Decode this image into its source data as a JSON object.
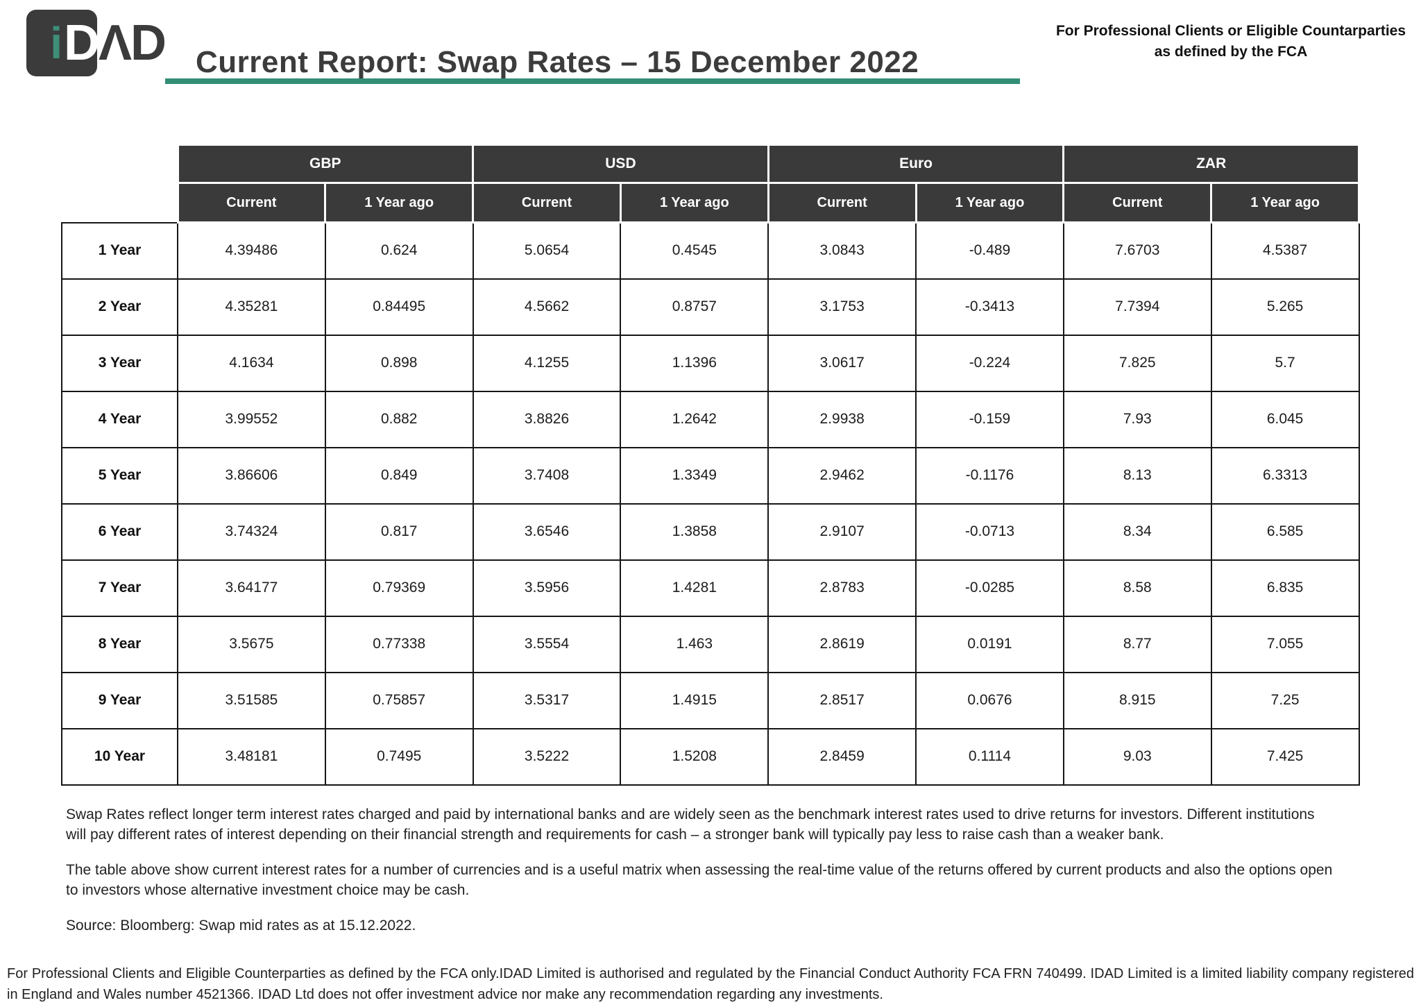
{
  "header": {
    "logo": {
      "square_i": "i",
      "square_d": "D",
      "outer": "ΛD",
      "brand": "iDAD"
    },
    "title": "Current Report: Swap Rates – 15 December 2022",
    "compliance_note": "For Professional Clients or Eligible Countarparties as defined by the FCA"
  },
  "colors": {
    "accent_green": "#338E76",
    "header_dark": "#3A3A3A",
    "border_black": "#161616"
  },
  "table": {
    "currency_groups": [
      "GBP",
      "USD",
      "Euro",
      "ZAR"
    ],
    "sub_headers": [
      "Current",
      "1 Year ago"
    ],
    "rows": [
      {
        "label": "1 Year",
        "values": [
          "4.39486",
          "0.624",
          "5.0654",
          "0.4545",
          "3.0843",
          "-0.489",
          "7.6703",
          "4.5387"
        ]
      },
      {
        "label": "2 Year",
        "values": [
          "4.35281",
          "0.84495",
          "4.5662",
          "0.8757",
          "3.1753",
          "-0.3413",
          "7.7394",
          "5.265"
        ]
      },
      {
        "label": "3 Year",
        "values": [
          "4.1634",
          "0.898",
          "4.1255",
          "1.1396",
          "3.0617",
          "-0.224",
          "7.825",
          "5.7"
        ]
      },
      {
        "label": "4 Year",
        "values": [
          "3.99552",
          "0.882",
          "3.8826",
          "1.2642",
          "2.9938",
          "-0.159",
          "7.93",
          "6.045"
        ]
      },
      {
        "label": "5 Year",
        "values": [
          "3.86606",
          "0.849",
          "3.7408",
          "1.3349",
          "2.9462",
          "-0.1176",
          "8.13",
          "6.3313"
        ]
      },
      {
        "label": "6 Year",
        "values": [
          "3.74324",
          "0.817",
          "3.6546",
          "1.3858",
          "2.9107",
          "-0.0713",
          "8.34",
          "6.585"
        ]
      },
      {
        "label": "7 Year",
        "values": [
          "3.64177",
          "0.79369",
          "3.5956",
          "1.4281",
          "2.8783",
          "-0.0285",
          "8.58",
          "6.835"
        ]
      },
      {
        "label": "8 Year",
        "values": [
          "3.5675",
          "0.77338",
          "3.5554",
          "1.463",
          "2.8619",
          "0.0191",
          "8.77",
          "7.055"
        ]
      },
      {
        "label": "9 Year",
        "values": [
          "3.51585",
          "0.75857",
          "3.5317",
          "1.4915",
          "2.8517",
          "0.0676",
          "8.915",
          "7.25"
        ]
      },
      {
        "label": "10 Year",
        "values": [
          "3.48181",
          "0.7495",
          "3.5222",
          "1.5208",
          "2.8459",
          "0.1114",
          "9.03",
          "7.425"
        ]
      }
    ]
  },
  "notes": {
    "paragraph1": "Swap Rates reflect longer term interest rates charged and paid by international banks and are widely seen as the benchmark interest rates used to drive returns for investors. Different institutions will pay different rates of interest depending on their financial strength and requirements for cash – a stronger bank will typically pay less to raise cash than a weaker bank.",
    "paragraph2": "The table above show current interest rates for a number of currencies and is a useful matrix when assessing the real-time value of the returns offered by current products and also the options open to investors whose alternative investment choice may be cash.",
    "source": "Source: Bloomberg: Swap mid rates as at 15.12.2022."
  },
  "footer": {
    "disclaimer": "For Professional Clients and Eligible Counterparties as defined by the FCA only.IDAD Limited is authorised and regulated by the Financial Conduct Authority FCA FRN 740499. IDAD Limited is a limited liability company registered in England and Wales number 4521366. IDAD Ltd does not offer investment advice nor make any recommendation regarding any investments."
  }
}
